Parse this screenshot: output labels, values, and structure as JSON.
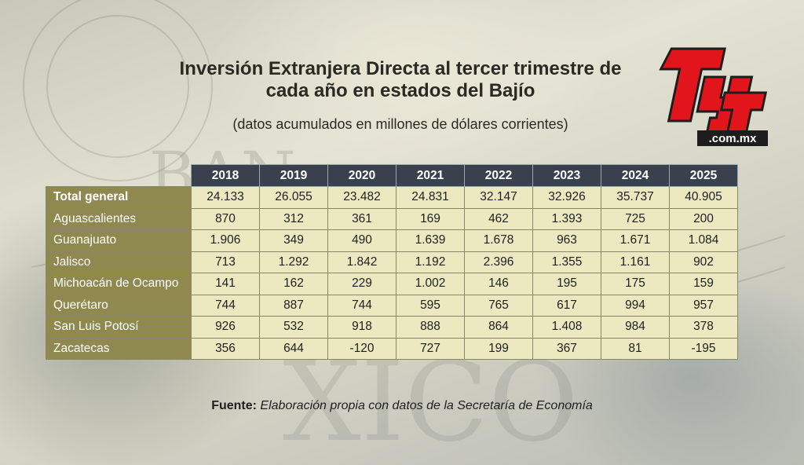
{
  "header": {
    "title": "Inversión Extranjera Directa al tercer trimestre de cada año en estados del Bajío",
    "subtitle": "(datos acumulados en millones de dólares corrientes)"
  },
  "logo": {
    "text": "TyT",
    "domain": ".com.mx",
    "color": "#e1151b"
  },
  "chart_data": {
    "type": "table",
    "title": "Inversión Extranjera Directa al tercer trimestre de cada año en estados del Bajío",
    "subtitle": "(datos acumulados en millones de dólares corrientes)",
    "columns": [
      "2018",
      "2019",
      "2020",
      "2021",
      "2022",
      "2023",
      "2024",
      "2025"
    ],
    "rows": [
      {
        "label": "Total general",
        "values": [
          "24.133",
          "26.055",
          "23.482",
          "24.831",
          "32.147",
          "32.926",
          "35.737",
          "40.905"
        ]
      },
      {
        "label": "Aguascalientes",
        "values": [
          "870",
          "312",
          "361",
          "169",
          "462",
          "1.393",
          "725",
          "200"
        ]
      },
      {
        "label": "Guanajuato",
        "values": [
          "1.906",
          "349",
          "490",
          "1.639",
          "1.678",
          "963",
          "1.671",
          "1.084"
        ]
      },
      {
        "label": "Jalisco",
        "values": [
          "713",
          "1.292",
          "1.842",
          "1.192",
          "2.396",
          "1.355",
          "1.161",
          "902"
        ]
      },
      {
        "label": "Michoacán de Ocampo",
        "values": [
          "141",
          "162",
          "229",
          "1.002",
          "146",
          "195",
          "175",
          "159"
        ]
      },
      {
        "label": "Querétaro",
        "values": [
          "744",
          "887",
          "744",
          "595",
          "765",
          "617",
          "994",
          "957"
        ]
      },
      {
        "label": "San Luis Potosí",
        "values": [
          "926",
          "532",
          "918",
          "888",
          "864",
          "1.408",
          "984",
          "378"
        ]
      },
      {
        "label": "Zacatecas",
        "values": [
          "356",
          "644",
          "-120",
          "727",
          "199",
          "367",
          "81",
          "-195"
        ]
      }
    ]
  },
  "source": {
    "label": "Fuente:",
    "text": "Elaboración propia con datos de la Secretaría de Economía"
  },
  "colors": {
    "header_bg": "#3a414e",
    "label_bg": "#8f8950",
    "cell_bg": "#ece9c1"
  }
}
